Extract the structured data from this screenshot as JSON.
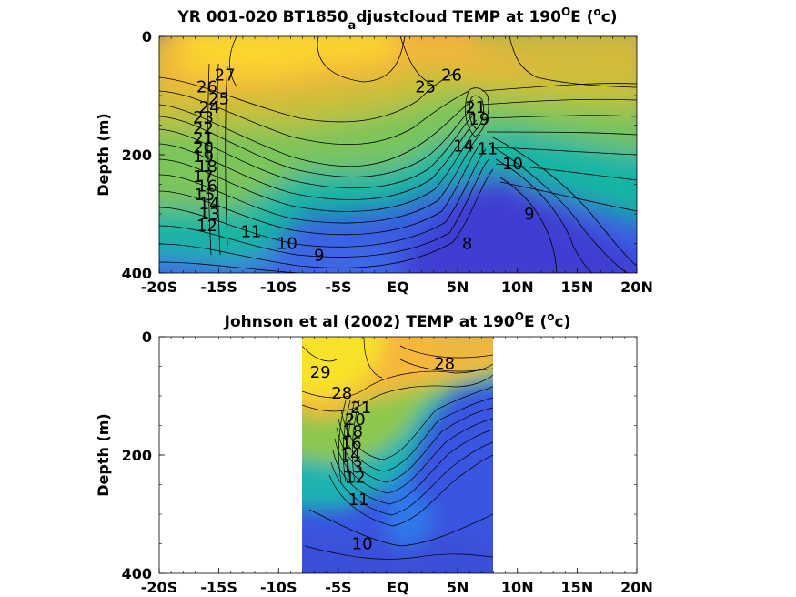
{
  "chart_data": [
    {
      "type": "contour",
      "title": {
        "main": "YR 001-020 BT1850",
        "sub": "a",
        "rest": "djustcloud TEMP at 190",
        "deg": "O",
        "unit_open": "E (",
        "unit_sup": "o",
        "unit_close": "c)"
      },
      "ylabel": "Depth (m)",
      "xlim": [
        -20,
        20
      ],
      "ylim": [
        400,
        0
      ],
      "data_xlim": [
        -20,
        20
      ],
      "xticklabels": [
        "-20S",
        "-15S",
        "-10S",
        "-5S",
        "EQ",
        "5N",
        "10N",
        "15N",
        "20N"
      ],
      "xticks": [
        -20,
        -15,
        -10,
        -5,
        0,
        5,
        10,
        15,
        20
      ],
      "yticks": [
        0,
        200,
        400
      ],
      "yticklabels": [
        "0",
        "200",
        "400"
      ],
      "colormap": "parula",
      "color_range": [
        7,
        30
      ],
      "contour_labels": [
        {
          "text": "27",
          "x": -14.5,
          "y": 65
        },
        {
          "text": "26",
          "x": -16,
          "y": 85
        },
        {
          "text": "25",
          "x": -15,
          "y": 105
        },
        {
          "text": "24",
          "x": -15.8,
          "y": 120
        },
        {
          "text": "23",
          "x": -16.3,
          "y": 137
        },
        {
          "text": "22",
          "x": -16.3,
          "y": 155
        },
        {
          "text": "21",
          "x": -16.3,
          "y": 172
        },
        {
          "text": "20",
          "x": -16.3,
          "y": 188
        },
        {
          "text": "19",
          "x": -16.3,
          "y": 203
        },
        {
          "text": "18",
          "x": -16,
          "y": 220
        },
        {
          "text": "17",
          "x": -16.3,
          "y": 237
        },
        {
          "text": "16",
          "x": -16,
          "y": 253
        },
        {
          "text": "15",
          "x": -16.2,
          "y": 268
        },
        {
          "text": "14",
          "x": -15.8,
          "y": 283
        },
        {
          "text": "13",
          "x": -15.8,
          "y": 300
        },
        {
          "text": "12",
          "x": -16,
          "y": 320
        },
        {
          "text": "11",
          "x": -12.3,
          "y": 330
        },
        {
          "text": "10",
          "x": -9.3,
          "y": 350
        },
        {
          "text": "9",
          "x": -6.6,
          "y": 370
        },
        {
          "text": "26",
          "x": 4.5,
          "y": 65
        },
        {
          "text": "25",
          "x": 2.3,
          "y": 85
        },
        {
          "text": "11",
          "x": 7.5,
          "y": 190
        },
        {
          "text": "10",
          "x": 9.6,
          "y": 215
        },
        {
          "text": "9",
          "x": 11,
          "y": 300
        },
        {
          "text": "8",
          "x": 5.8,
          "y": 350
        },
        {
          "text": "21",
          "x": 6.5,
          "y": 120
        },
        {
          "text": "19",
          "x": 6.8,
          "y": 140
        },
        {
          "text": "14",
          "x": 5.5,
          "y": 185
        }
      ]
    },
    {
      "type": "contour",
      "title": {
        "main": "Johnson et al (2002) TEMP at 190",
        "deg": "O",
        "unit_open": "E (",
        "unit_sup": "o",
        "unit_close": "c)"
      },
      "ylabel": "Depth (m)",
      "xlim": [
        -20,
        20
      ],
      "ylim": [
        400,
        0
      ],
      "data_xlim": [
        -8,
        8
      ],
      "xticklabels": [
        "-20S",
        "-15S",
        "-10S",
        "-5S",
        "EQ",
        "5N",
        "10N",
        "15N",
        "20N"
      ],
      "xticks": [
        -20,
        -15,
        -10,
        -5,
        0,
        5,
        10,
        15,
        20
      ],
      "yticks": [
        0,
        200,
        400
      ],
      "yticklabels": [
        "0",
        "200",
        "400"
      ],
      "colormap": "parula",
      "color_range": [
        7,
        30
      ],
      "contour_labels": [
        {
          "text": "29",
          "x": -6.5,
          "y": 60
        },
        {
          "text": "28",
          "x": -4.7,
          "y": 95
        },
        {
          "text": "28",
          "x": 3.9,
          "y": 45
        },
        {
          "text": "21",
          "x": -3.1,
          "y": 120
        },
        {
          "text": "20",
          "x": -3.6,
          "y": 140
        },
        {
          "text": "18",
          "x": -3.8,
          "y": 160
        },
        {
          "text": "16",
          "x": -3.9,
          "y": 180
        },
        {
          "text": "14",
          "x": -4,
          "y": 200
        },
        {
          "text": "13",
          "x": -3.8,
          "y": 220
        },
        {
          "text": "12",
          "x": -3.6,
          "y": 238
        },
        {
          "text": "11",
          "x": -3.3,
          "y": 275
        },
        {
          "text": "10",
          "x": -3,
          "y": 350
        }
      ]
    }
  ]
}
